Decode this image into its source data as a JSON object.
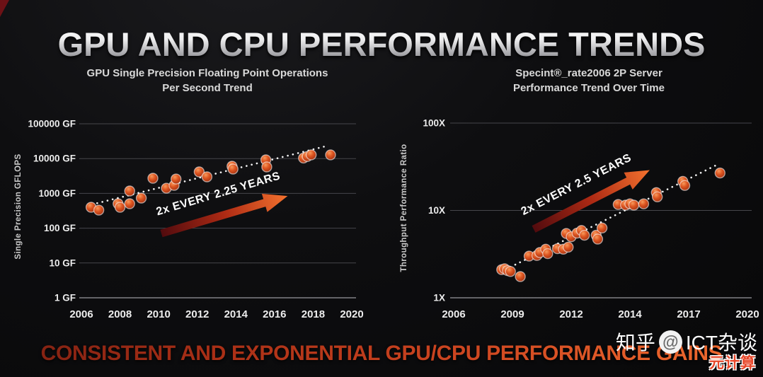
{
  "header": {
    "title": "GPU AND CPU PERFORMANCE TRENDS"
  },
  "footer": {
    "slogan": "CONSISTENT AND EXPONENTIAL GPU/CPU PERFORMANCE GAINS"
  },
  "watermark": {
    "prefix": "知乎",
    "at_symbol": "@",
    "handle": "ICT杂谈",
    "sub": "元计算"
  },
  "colors": {
    "background": "#0e0e10",
    "point_orange": "#dd5420",
    "arrow_dark_red": "#520b0e",
    "arrow_bright_orange": "#f4722e",
    "gridline": "#46464b",
    "slogan_red": "#c13a1c",
    "title_silver": "#d8d8d8"
  },
  "chart_data": [
    {
      "type": "scatter",
      "title": "GPU Single Precision Floating Point Operations Per Second Trend",
      "title_lines": [
        "GPU Single Precision Floating Point Operations",
        "Per Second Trend"
      ],
      "xlabel": "",
      "ylabel": "Single Precision GFLOPS",
      "yscale": "log",
      "grid": true,
      "legend": false,
      "annotation": "2x EVERY 2.25 YEARS",
      "ytick_labels": [
        "100000 GF",
        "10000 GF",
        "1000 GF",
        "100 GF",
        "10 GF",
        "1 GF"
      ],
      "ytick_values": [
        100000,
        10000,
        1000,
        100,
        10,
        1
      ],
      "xtick_labels": [
        "2006",
        "2008",
        "2010",
        "2012",
        "2014",
        "2016",
        "2018",
        "2020"
      ],
      "xtick_years": [
        2006,
        2008,
        2010,
        2012,
        2014,
        2016,
        2018,
        2020
      ],
      "xlim": [
        2006,
        2020
      ],
      "ylim": [
        1,
        100000
      ],
      "points": [
        [
          2006.5,
          400
        ],
        [
          2006.9,
          330
        ],
        [
          2007.9,
          505
        ],
        [
          2008.0,
          400
        ],
        [
          2008.5,
          505
        ],
        [
          2008.5,
          1170
        ],
        [
          2009.1,
          735
        ],
        [
          2009.7,
          2720
        ],
        [
          2010.4,
          1410
        ],
        [
          2010.8,
          1700
        ],
        [
          2010.9,
          2590
        ],
        [
          2012.1,
          4140
        ],
        [
          2012.5,
          2990
        ],
        [
          2013.8,
          6030
        ],
        [
          2013.85,
          5000
        ],
        [
          2015.55,
          9200
        ],
        [
          2015.6,
          5750
        ],
        [
          2017.5,
          10400
        ],
        [
          2017.7,
          11500
        ],
        [
          2017.9,
          12800
        ],
        [
          2018.9,
          12800
        ]
      ],
      "trend": {
        "x1": 2006.55,
        "v1": 480,
        "x2": 2018.7,
        "v2": 23000
      }
    },
    {
      "type": "scatter",
      "title": "Specint®_rate2006 2P Server Performance Trend Over Time",
      "title_lines": [
        "Specint®_rate2006 2P Server",
        "Performance Trend Over Time"
      ],
      "xlabel": "",
      "ylabel": "Throughput Performance Ratio",
      "yscale": "log",
      "grid": true,
      "legend": false,
      "annotation": "2x EVERY 2.5 YEARS",
      "ytick_labels": [
        "100X",
        "10X",
        "1X"
      ],
      "ytick_values": [
        100,
        10,
        1
      ],
      "xtick_labels": [
        "2006",
        "2009",
        "2012",
        "2014",
        "2017",
        "2020"
      ],
      "xtick_years": [
        2006,
        2009,
        2012,
        2014,
        2017,
        2020
      ],
      "xlim": [
        2006,
        2020
      ],
      "ylim": [
        1,
        100
      ],
      "points": [
        [
          2008.45,
          2.1
        ],
        [
          2008.6,
          2.15
        ],
        [
          2008.75,
          2.05
        ],
        [
          2008.9,
          2.0
        ],
        [
          2009.4,
          1.75
        ],
        [
          2009.85,
          3.0
        ],
        [
          2010.25,
          3.05
        ],
        [
          2010.4,
          3.3
        ],
        [
          2010.7,
          3.6
        ],
        [
          2010.8,
          3.2
        ],
        [
          2011.3,
          3.65
        ],
        [
          2011.6,
          3.6
        ],
        [
          2011.85,
          3.8
        ],
        [
          2011.75,
          5.45
        ],
        [
          2012.0,
          5.0
        ],
        [
          2012.2,
          5.5
        ],
        [
          2012.35,
          5.9
        ],
        [
          2012.45,
          5.2
        ],
        [
          2012.85,
          5.2
        ],
        [
          2012.9,
          4.7
        ],
        [
          2013.05,
          6.3
        ],
        [
          2013.6,
          11.7
        ],
        [
          2013.85,
          11.5
        ],
        [
          2014.0,
          11.9
        ],
        [
          2014.2,
          11.5
        ],
        [
          2014.7,
          11.9
        ],
        [
          2015.35,
          16.0
        ],
        [
          2015.4,
          14.3
        ],
        [
          2016.7,
          21.5
        ],
        [
          2016.8,
          19.3
        ],
        [
          2018.6,
          26.8
        ]
      ],
      "trend": {
        "x1": 2008.9,
        "v1": 2.25,
        "x2": 2018.35,
        "v2": 32.5
      }
    }
  ]
}
